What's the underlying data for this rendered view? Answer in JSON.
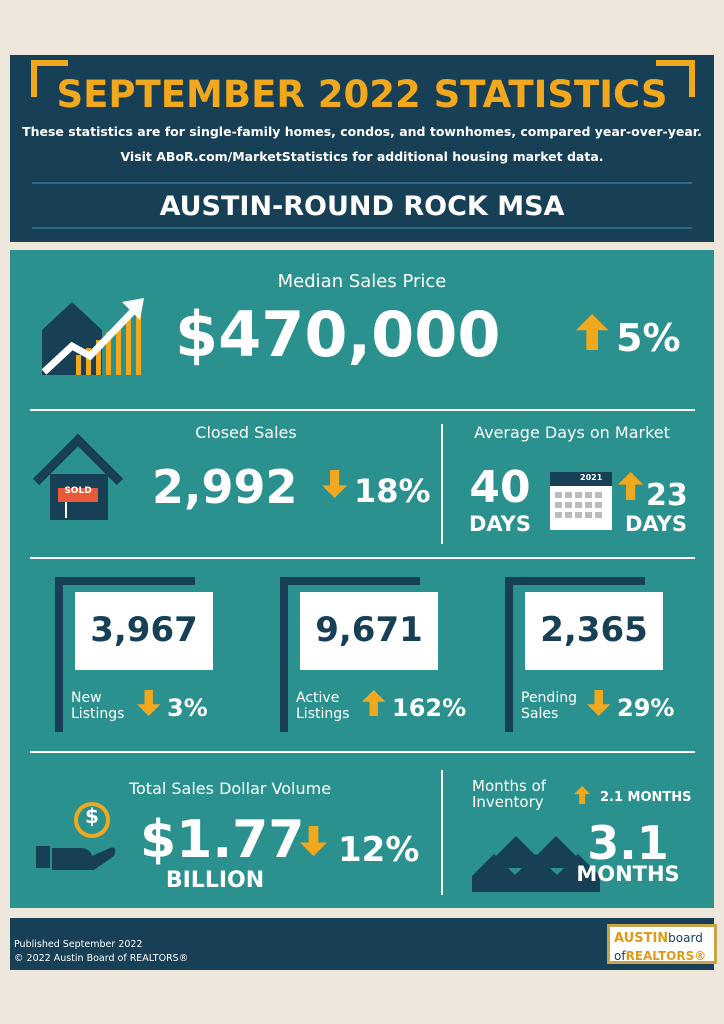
{
  "header": {
    "title": "SEPTEMBER 2022 STATISTICS",
    "subtitle": [
      "These statistics are for single-family homes, condos, and townhomes, compared year-over-year.",
      "Visit ABoR.com/MarketStatistics for additional housing market data."
    ],
    "region": "AUSTIN-ROUND ROCK MSA"
  },
  "median_sales_price": {
    "label": "Median Sales Price",
    "value": "$470,000",
    "change": "5%",
    "direction": "up"
  },
  "closed_sales": {
    "label": "Closed Sales",
    "sign": "SOLD",
    "value": "2,992",
    "change": "18%",
    "direction": "down"
  },
  "days_on_market": {
    "label": "Average Days on Market",
    "value": "40",
    "unit": "DAYS",
    "calendar_year": "2021",
    "change": "23",
    "change_unit": "DAYS",
    "direction": "up"
  },
  "listings": [
    {
      "label": [
        "New",
        "Listings"
      ],
      "value": "3,967",
      "change": "3%",
      "direction": "down"
    },
    {
      "label": [
        "Active",
        "Listings"
      ],
      "value": "9,671",
      "change": "162%",
      "direction": "up"
    },
    {
      "label": [
        "Pending",
        "Sales"
      ],
      "value": "2,365",
      "change": "29%",
      "direction": "down"
    }
  ],
  "sales_volume": {
    "label": "Total Sales Dollar Volume",
    "symbol": "$",
    "value": "$1.77",
    "unit": "BILLION",
    "change": "12%",
    "direction": "down"
  },
  "inventory": {
    "label": [
      "Months of",
      "Inventory"
    ],
    "change": "2.1 MONTHS",
    "direction": "up",
    "value": "3.1",
    "unit": "MONTHS"
  },
  "footer": {
    "published": "Published September 2022",
    "copyright": "© 2022 Austin Board of REALTORS®",
    "logo": [
      "AUSTIN",
      "board",
      "of",
      "REALTORS®"
    ]
  }
}
